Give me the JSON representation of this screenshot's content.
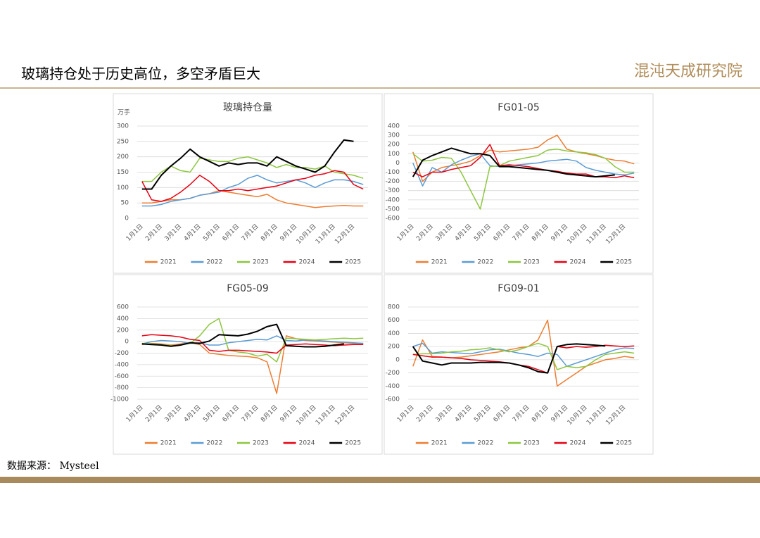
{
  "header": {
    "title": "玻璃持仓处于历史高位，多空矛盾巨大",
    "logo": "混沌天成研究院"
  },
  "source": "数据来源： Mysteel",
  "chart_data": [
    {
      "type": "line",
      "title": "玻璃持仓量",
      "y_label": "万手",
      "grid": true,
      "legend": "bottom",
      "categories": [
        "1月1日",
        null,
        "2月1日",
        null,
        "3月1日",
        null,
        "4月1日",
        null,
        "5月1日",
        null,
        "6月1日",
        null,
        "7月1日",
        null,
        "8月1日",
        null,
        "9月1日",
        null,
        "10月1日",
        null,
        "11月1日",
        null,
        "12月1日",
        null
      ],
      "ylim": [
        0,
        300
      ],
      "yticks": [
        0,
        50,
        100,
        150,
        200,
        250,
        300
      ],
      "series": [
        {
          "name": "2021",
          "color": "#ed7d31",
          "values": [
            50,
            50,
            55,
            60,
            60,
            65,
            75,
            80,
            90,
            85,
            80,
            75,
            70,
            78,
            60,
            50,
            45,
            40,
            35,
            38,
            40,
            42,
            40,
            40
          ]
        },
        {
          "name": "2022",
          "color": "#5b9bd5",
          "values": [
            40,
            40,
            45,
            55,
            60,
            65,
            75,
            80,
            85,
            100,
            110,
            130,
            140,
            125,
            115,
            120,
            125,
            115,
            100,
            115,
            125,
            125,
            120,
            110
          ]
        },
        {
          "name": "2023",
          "color": "#8cc63f",
          "values": [
            120,
            120,
            150,
            170,
            155,
            150,
            195,
            190,
            185,
            185,
            195,
            200,
            190,
            180,
            165,
            175,
            165,
            165,
            160,
            170,
            150,
            145,
            140,
            130
          ]
        },
        {
          "name": "2024",
          "color": "#e60012",
          "values": [
            120,
            60,
            55,
            65,
            85,
            110,
            140,
            120,
            90,
            90,
            95,
            90,
            95,
            100,
            105,
            115,
            125,
            130,
            140,
            145,
            155,
            150,
            110,
            95
          ]
        },
        {
          "name": "2025",
          "color": "#000000",
          "values": [
            95,
            95,
            140,
            170,
            195,
            225,
            200,
            185,
            170,
            180,
            175,
            180,
            180,
            170,
            200,
            185,
            170,
            160,
            150,
            170,
            215,
            255,
            250,
            null
          ]
        }
      ]
    },
    {
      "type": "line",
      "title": "FG01-05",
      "grid": true,
      "legend": "bottom",
      "categories": [
        "1月1日",
        null,
        "2月1日",
        null,
        "3月1日",
        null,
        "4月1日",
        null,
        "5月1日",
        null,
        "6月1日",
        null,
        "7月1日",
        null,
        "8月1日",
        null,
        "9月1日",
        null,
        "10月1日",
        null,
        "11月1日",
        null,
        "12月1日",
        null
      ],
      "ylim": [
        -600,
        400
      ],
      "yticks": [
        -600,
        -500,
        -400,
        -300,
        -200,
        -100,
        0,
        100,
        200,
        300,
        400
      ],
      "series": [
        {
          "name": "2021",
          "color": "#ed7d31",
          "values": [
            120,
            -200,
            -100,
            -50,
            -30,
            -10,
            20,
            80,
            140,
            120,
            130,
            140,
            150,
            170,
            250,
            300,
            150,
            120,
            100,
            80,
            50,
            30,
            20,
            -10
          ]
        },
        {
          "name": "2022",
          "color": "#5b9bd5",
          "values": [
            0,
            -250,
            -50,
            -100,
            -20,
            30,
            70,
            100,
            -30,
            -40,
            -30,
            -20,
            -10,
            0,
            20,
            30,
            40,
            20,
            -50,
            -80,
            -100,
            -120,
            -130,
            -110
          ]
        },
        {
          "name": "2023",
          "color": "#8cc63f",
          "values": [
            100,
            20,
            30,
            60,
            50,
            -100,
            -300,
            -500,
            -40,
            -30,
            20,
            40,
            60,
            80,
            140,
            150,
            130,
            120,
            110,
            90,
            50,
            -40,
            -100,
            -100
          ]
        },
        {
          "name": "2024",
          "color": "#e60012",
          "values": [
            -100,
            -150,
            -100,
            -100,
            -70,
            -50,
            -30,
            60,
            200,
            -30,
            -20,
            -30,
            -40,
            -60,
            -80,
            -90,
            -110,
            -120,
            -120,
            -150,
            -150,
            -160,
            -140,
            -160
          ]
        },
        {
          "name": "2025",
          "color": "#000000",
          "values": [
            -150,
            30,
            80,
            120,
            160,
            130,
            100,
            100,
            80,
            -40,
            -40,
            -50,
            -60,
            -70,
            -80,
            -100,
            -120,
            -130,
            -140,
            -150,
            -140,
            -130,
            null,
            null
          ]
        }
      ]
    },
    {
      "type": "line",
      "title": "FG05-09",
      "grid": true,
      "legend": "bottom",
      "categories": [
        "1月1日",
        null,
        "2月1日",
        null,
        "3月1日",
        null,
        "4月1日",
        null,
        "5月1日",
        null,
        "6月1日",
        null,
        "7月1日",
        null,
        "8月1日",
        null,
        "9月1日",
        null,
        "10月1日",
        null,
        "11月1日",
        null,
        "12月1日",
        null
      ],
      "ylim": [
        -1000,
        600
      ],
      "yticks": [
        -1000,
        -800,
        -600,
        -400,
        -200,
        0,
        200,
        400,
        600
      ],
      "series": [
        {
          "name": "2021",
          "color": "#ed7d31",
          "values": [
            -50,
            -30,
            -40,
            -60,
            -40,
            -20,
            -50,
            -200,
            -220,
            -240,
            -250,
            -260,
            -280,
            -350,
            -900,
            100,
            50,
            20,
            10,
            0,
            -10,
            -20,
            -30,
            -30
          ]
        },
        {
          "name": "2022",
          "color": "#5b9bd5",
          "values": [
            -40,
            0,
            20,
            10,
            0,
            -30,
            -20,
            -60,
            -60,
            -20,
            0,
            20,
            40,
            30,
            100,
            20,
            10,
            30,
            20,
            10,
            0,
            -10,
            -20,
            -30
          ]
        },
        {
          "name": "2023",
          "color": "#8cc63f",
          "values": [
            -30,
            -40,
            -50,
            -70,
            -60,
            -30,
            100,
            300,
            400,
            -150,
            -180,
            -200,
            -250,
            -220,
            -350,
            60,
            50,
            40,
            30,
            40,
            50,
            60,
            50,
            60
          ]
        },
        {
          "name": "2024",
          "color": "#e60012",
          "values": [
            100,
            120,
            110,
            100,
            80,
            40,
            20,
            -150,
            -170,
            -150,
            -150,
            -160,
            -170,
            -180,
            -200,
            -60,
            -50,
            -40,
            -50,
            -60,
            -70,
            -60,
            -50,
            -50
          ]
        },
        {
          "name": "2025",
          "color": "#000000",
          "values": [
            -40,
            -50,
            -60,
            -80,
            -60,
            -20,
            -30,
            10,
            120,
            110,
            100,
            130,
            180,
            260,
            300,
            -70,
            -80,
            -90,
            -90,
            -80,
            -60,
            -40,
            null,
            null
          ]
        }
      ]
    },
    {
      "type": "line",
      "title": "FG09-01",
      "grid": true,
      "legend": "bottom",
      "categories": [
        "1月1日",
        null,
        "2月1日",
        null,
        "3月1日",
        null,
        "4月1日",
        null,
        "5月1日",
        null,
        "6月1日",
        null,
        "7月1日",
        null,
        "8月1日",
        null,
        "9月1日",
        null,
        "10月1日",
        null,
        "11月1日",
        null,
        "12月1日",
        null
      ],
      "ylim": [
        -600,
        800
      ],
      "yticks": [
        -600,
        -400,
        -200,
        0,
        200,
        400,
        600,
        800
      ],
      "series": [
        {
          "name": "2021",
          "color": "#ed7d31",
          "values": [
            -100,
            300,
            50,
            40,
            30,
            40,
            60,
            80,
            100,
            120,
            150,
            180,
            200,
            300,
            600,
            -400,
            -300,
            -200,
            -100,
            -50,
            0,
            20,
            50,
            30
          ]
        },
        {
          "name": "2022",
          "color": "#5b9bd5",
          "values": [
            200,
            250,
            100,
            120,
            110,
            100,
            90,
            120,
            150,
            160,
            130,
            100,
            80,
            50,
            100,
            80,
            -100,
            -50,
            0,
            50,
            100,
            150,
            180,
            170
          ]
        },
        {
          "name": "2023",
          "color": "#8cc63f",
          "values": [
            80,
            90,
            90,
            100,
            120,
            130,
            150,
            160,
            180,
            150,
            120,
            150,
            200,
            250,
            200,
            -150,
            -100,
            -120,
            -100,
            0,
            80,
            100,
            120,
            100
          ]
        },
        {
          "name": "2024",
          "color": "#e60012",
          "values": [
            80,
            60,
            40,
            40,
            30,
            20,
            0,
            -10,
            -20,
            -30,
            -50,
            -80,
            -100,
            -150,
            -200,
            200,
            180,
            200,
            190,
            200,
            220,
            210,
            200,
            210
          ]
        },
        {
          "name": "2025",
          "color": "#000000",
          "values": [
            200,
            -20,
            -50,
            -80,
            -50,
            -50,
            -50,
            -40,
            -40,
            -40,
            -50,
            -80,
            -120,
            -180,
            -200,
            200,
            230,
            240,
            230,
            220,
            210,
            null,
            null,
            null
          ]
        }
      ]
    }
  ]
}
